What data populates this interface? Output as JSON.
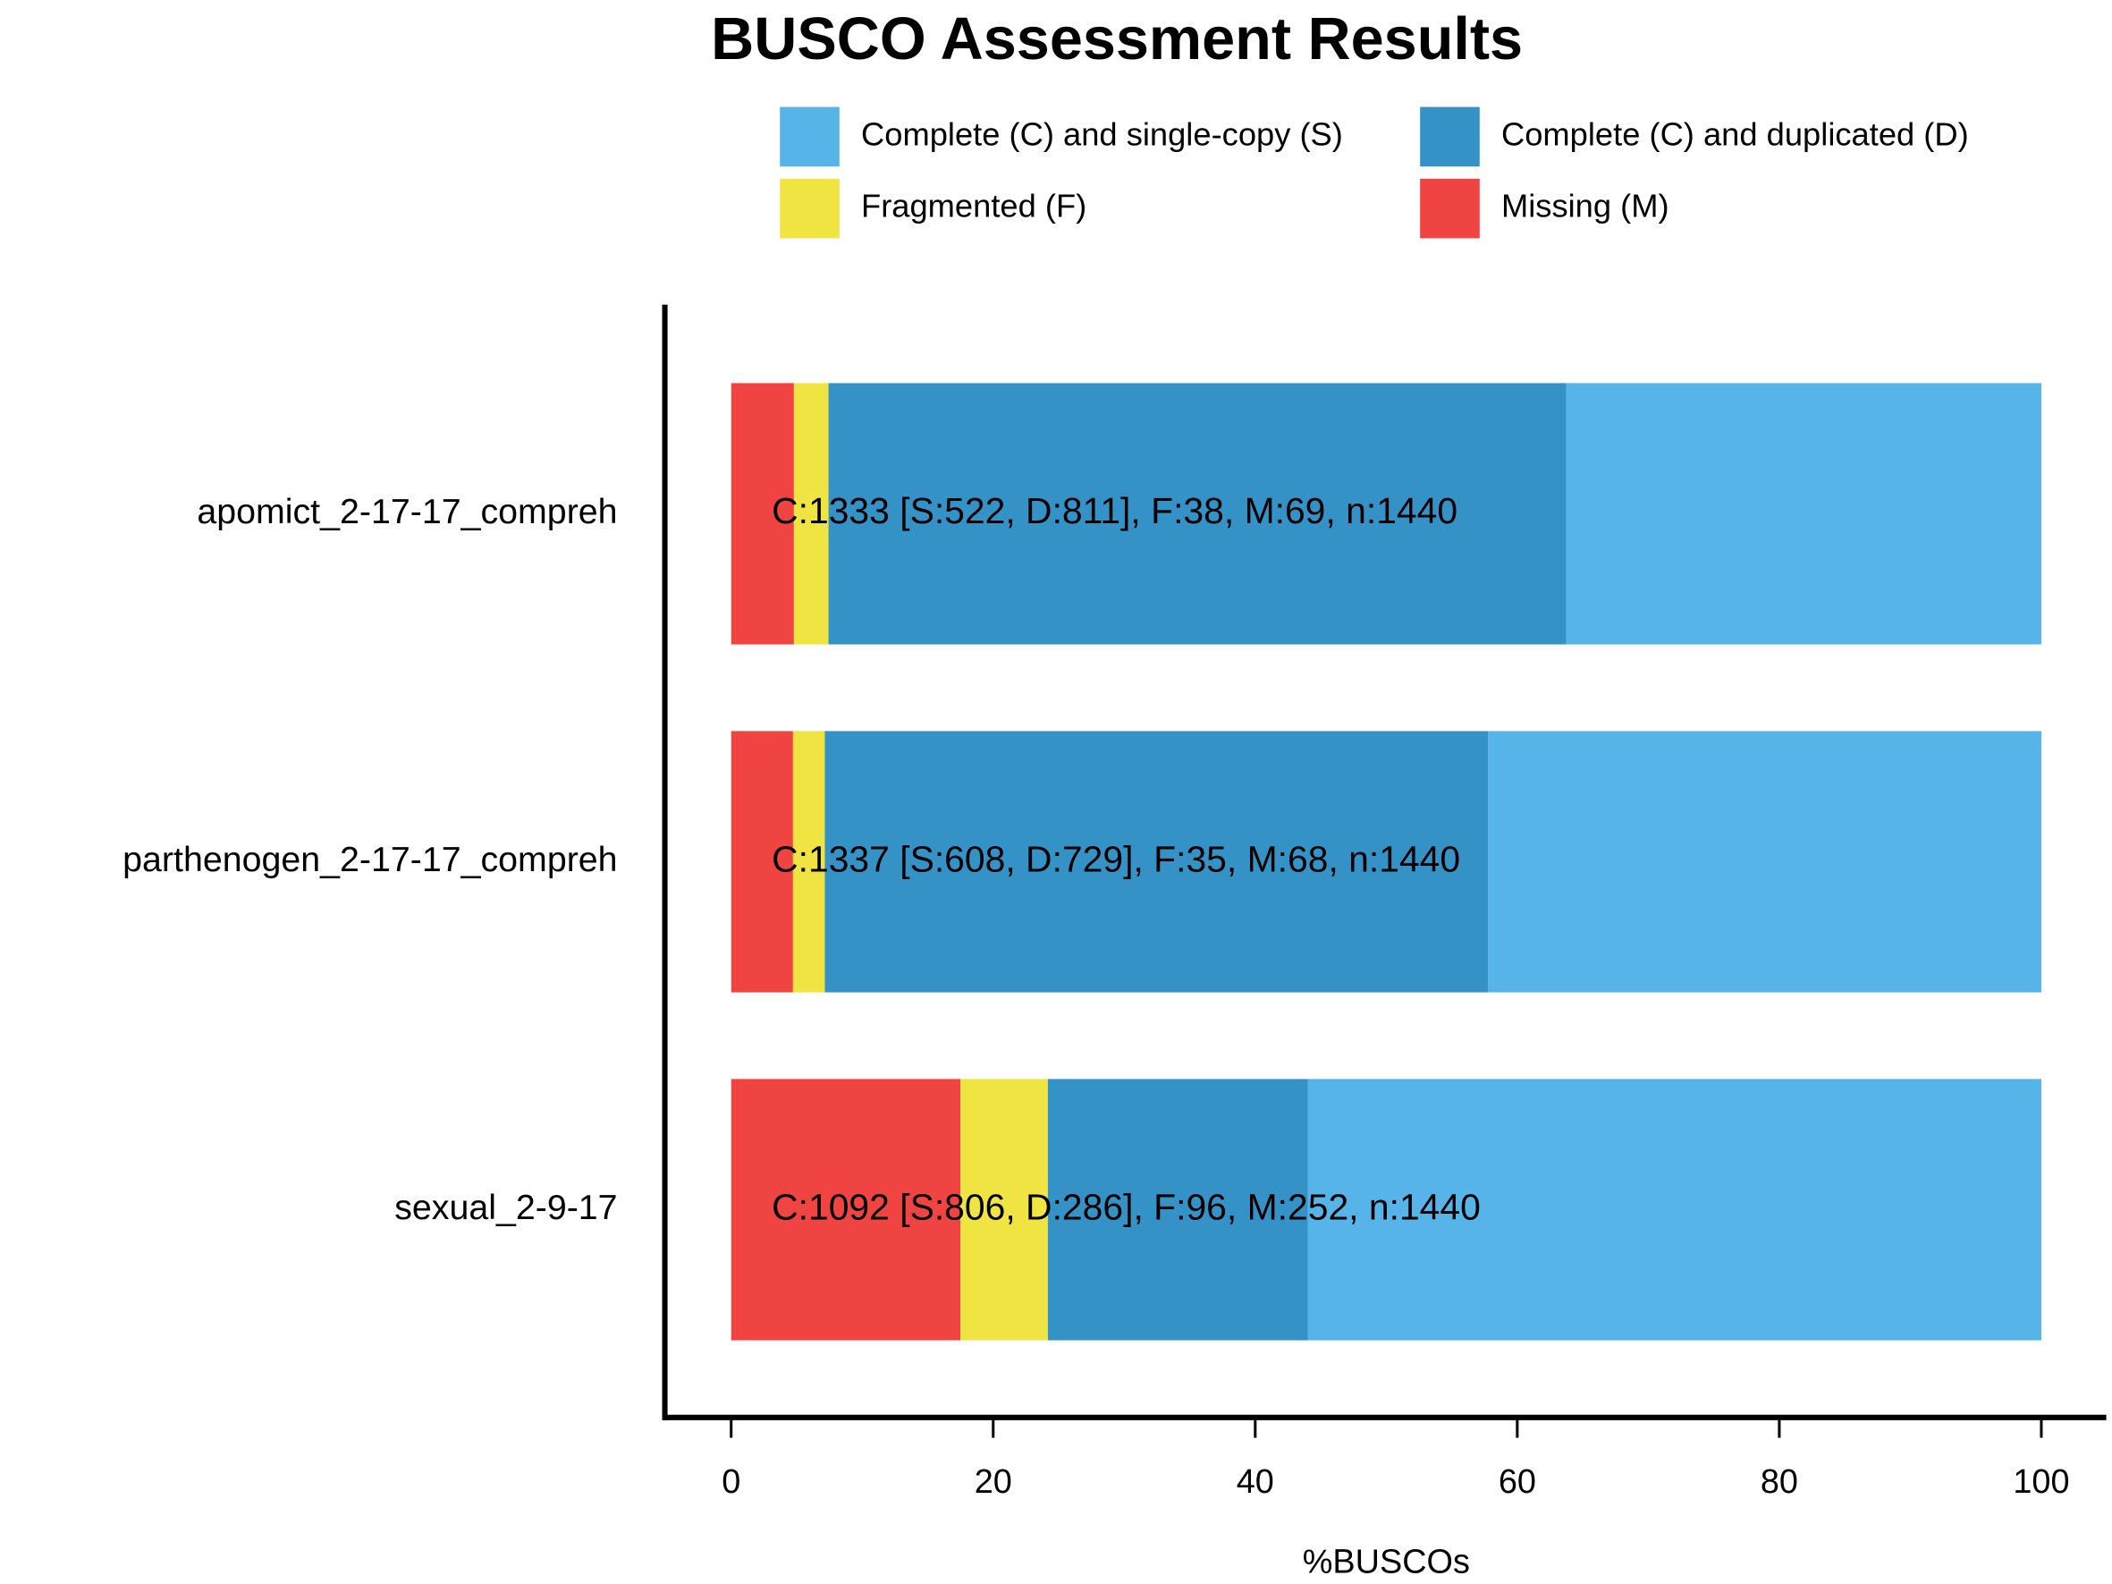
{
  "chart_data": {
    "type": "stacked-bar-horizontal",
    "title": "BUSCO Assessment Results",
    "x_label": "%BUSCOs",
    "categories": [
      "apomict_2-17-17_compreh",
      "parthenogen_2-17-17_compreh",
      "sexual_2-9-17"
    ],
    "series": [
      {
        "name": "Missing (M)",
        "color": "#f04442",
        "values": [
          4.79,
          4.72,
          17.5
        ]
      },
      {
        "name": "Fragmented (F)",
        "color": "#f0e442",
        "values": [
          2.64,
          2.43,
          6.67
        ]
      },
      {
        "name": "Complete (C) and duplicated (D)",
        "color": "#3492c7",
        "values": [
          56.32,
          50.63,
          19.86
        ]
      },
      {
        "name": "Complete (C) and single-copy (S)",
        "color": "#56b4e9",
        "values": [
          36.25,
          42.22,
          55.97
        ]
      }
    ],
    "annotations": [
      "C:1333 [S:522, D:811], F:38, M:69, n:1440",
      "C:1337 [S:608, D:729], F:35, M:68, n:1440",
      "C:1092 [S:806, D:286], F:96, M:252, n:1440"
    ],
    "xlim": [
      0,
      100
    ],
    "xticks": [
      0,
      20,
      40,
      60,
      80,
      100
    ]
  }
}
